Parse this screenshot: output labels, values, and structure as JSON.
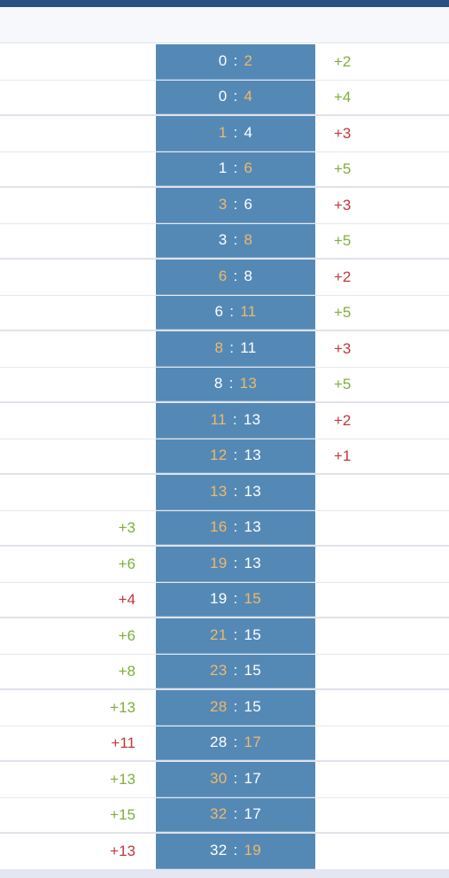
{
  "colors": {
    "top_bar": "#2a5081",
    "score_bg": "#5489b6",
    "highlight": "#f0b86a",
    "positive": "#7fae3a",
    "negative": "#c0393a"
  },
  "rows": [
    {
      "left": "",
      "left_tone": "",
      "home": "0",
      "away": "2",
      "scorer": "away",
      "right": "+2",
      "right_tone": "pos",
      "group_end": false
    },
    {
      "left": "",
      "left_tone": "",
      "home": "0",
      "away": "4",
      "scorer": "away",
      "right": "+4",
      "right_tone": "pos",
      "group_end": true
    },
    {
      "left": "",
      "left_tone": "",
      "home": "1",
      "away": "4",
      "scorer": "home",
      "right": "+3",
      "right_tone": "neg",
      "group_end": false
    },
    {
      "left": "",
      "left_tone": "",
      "home": "1",
      "away": "6",
      "scorer": "away",
      "right": "+5",
      "right_tone": "pos",
      "group_end": true
    },
    {
      "left": "",
      "left_tone": "",
      "home": "3",
      "away": "6",
      "scorer": "home",
      "right": "+3",
      "right_tone": "neg",
      "group_end": false
    },
    {
      "left": "",
      "left_tone": "",
      "home": "3",
      "away": "8",
      "scorer": "away",
      "right": "+5",
      "right_tone": "pos",
      "group_end": true
    },
    {
      "left": "",
      "left_tone": "",
      "home": "6",
      "away": "8",
      "scorer": "home",
      "right": "+2",
      "right_tone": "neg",
      "group_end": false
    },
    {
      "left": "",
      "left_tone": "",
      "home": "6",
      "away": "11",
      "scorer": "away",
      "right": "+5",
      "right_tone": "pos",
      "group_end": true
    },
    {
      "left": "",
      "left_tone": "",
      "home": "8",
      "away": "11",
      "scorer": "home",
      "right": "+3",
      "right_tone": "neg",
      "group_end": false
    },
    {
      "left": "",
      "left_tone": "",
      "home": "8",
      "away": "13",
      "scorer": "away",
      "right": "+5",
      "right_tone": "pos",
      "group_end": true
    },
    {
      "left": "",
      "left_tone": "",
      "home": "11",
      "away": "13",
      "scorer": "home",
      "right": "+2",
      "right_tone": "neg",
      "group_end": false
    },
    {
      "left": "",
      "left_tone": "",
      "home": "12",
      "away": "13",
      "scorer": "home",
      "right": "+1",
      "right_tone": "neg",
      "group_end": true
    },
    {
      "left": "",
      "left_tone": "",
      "home": "13",
      "away": "13",
      "scorer": "home",
      "right": "",
      "right_tone": "",
      "group_end": false
    },
    {
      "left": "+3",
      "left_tone": "pos",
      "home": "16",
      "away": "13",
      "scorer": "home",
      "right": "",
      "right_tone": "",
      "group_end": true
    },
    {
      "left": "+6",
      "left_tone": "pos",
      "home": "19",
      "away": "13",
      "scorer": "home",
      "right": "",
      "right_tone": "",
      "group_end": false
    },
    {
      "left": "+4",
      "left_tone": "neg",
      "home": "19",
      "away": "15",
      "scorer": "away",
      "right": "",
      "right_tone": "",
      "group_end": true
    },
    {
      "left": "+6",
      "left_tone": "pos",
      "home": "21",
      "away": "15",
      "scorer": "home",
      "right": "",
      "right_tone": "",
      "group_end": false
    },
    {
      "left": "+8",
      "left_tone": "pos",
      "home": "23",
      "away": "15",
      "scorer": "home",
      "right": "",
      "right_tone": "",
      "group_end": true
    },
    {
      "left": "+13",
      "left_tone": "pos",
      "home": "28",
      "away": "15",
      "scorer": "home",
      "right": "",
      "right_tone": "",
      "group_end": false
    },
    {
      "left": "+11",
      "left_tone": "neg",
      "home": "28",
      "away": "17",
      "scorer": "away",
      "right": "",
      "right_tone": "",
      "group_end": true
    },
    {
      "left": "+13",
      "left_tone": "pos",
      "home": "30",
      "away": "17",
      "scorer": "home",
      "right": "",
      "right_tone": "",
      "group_end": false
    },
    {
      "left": "+15",
      "left_tone": "pos",
      "home": "32",
      "away": "17",
      "scorer": "home",
      "right": "",
      "right_tone": "",
      "group_end": true
    },
    {
      "left": "+13",
      "left_tone": "neg",
      "home": "32",
      "away": "19",
      "scorer": "away",
      "right": "",
      "right_tone": "",
      "group_end": false
    }
  ]
}
